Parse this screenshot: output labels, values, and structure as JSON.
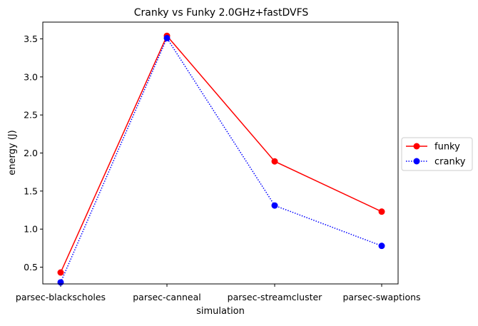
{
  "chart_data": {
    "type": "line",
    "title": "Cranky vs Funky 2.0GHz+fastDVFS",
    "xlabel": "simulation",
    "ylabel": "energy (J)",
    "categories": [
      "parsec-blackscholes",
      "parsec-canneal",
      "parsec-streamcluster",
      "parsec-swaptions"
    ],
    "ylim": [
      0.28,
      3.72
    ],
    "yticks": [
      0.5,
      1.0,
      1.5,
      2.0,
      2.5,
      3.0,
      3.5
    ],
    "ytick_labels": [
      "0.5",
      "1.0",
      "1.5",
      "2.0",
      "2.5",
      "3.0",
      "3.5"
    ],
    "grid": false,
    "legend_placement": "right, outside plot",
    "series": [
      {
        "name": "funky",
        "values": [
          0.43,
          3.54,
          1.89,
          1.23
        ],
        "color": "#ff0000",
        "line_style": "solid",
        "marker": "circle"
      },
      {
        "name": "cranky",
        "values": [
          0.3,
          3.51,
          1.31,
          0.78
        ],
        "color": "#0000ff",
        "line_style": "dotted",
        "marker": "circle"
      }
    ]
  }
}
